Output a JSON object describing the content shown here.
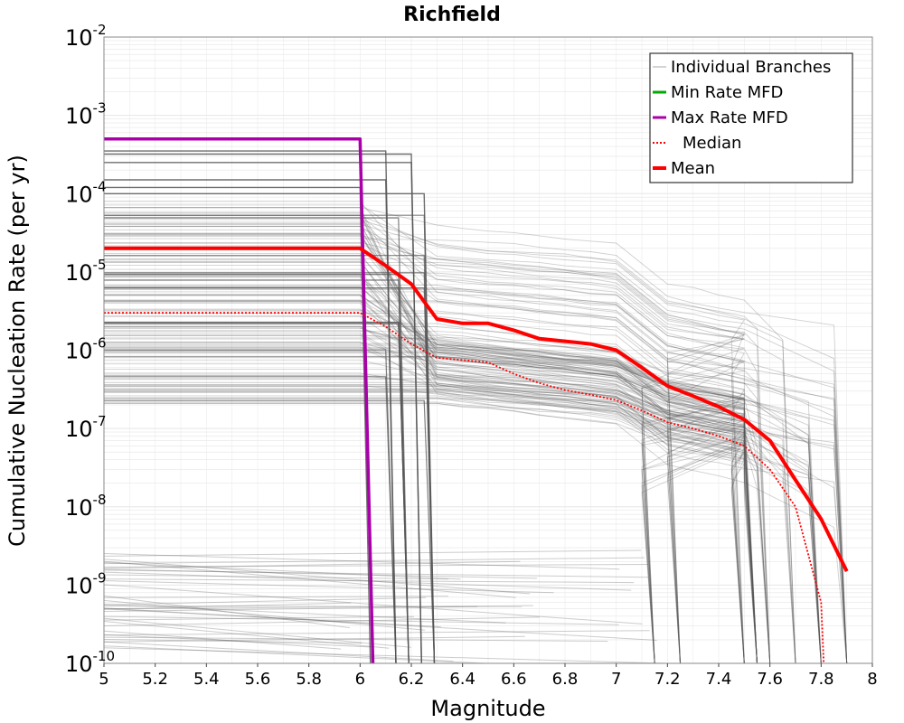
{
  "chart_data": {
    "type": "line",
    "title": "Richfield",
    "xlabel": "Magnitude",
    "ylabel": "Cumulative Nucleation Rate (per yr)",
    "xlim": [
      5,
      8
    ],
    "ylim": [
      1e-10,
      0.01
    ],
    "yscale": "log",
    "grid": true,
    "legend_position": "top-right",
    "x_ticks": [
      "5",
      "5.2",
      "5.4",
      "5.6",
      "5.8",
      "6",
      "6.2",
      "6.4",
      "6.6",
      "6.8",
      "7",
      "7.2",
      "7.4",
      "7.6",
      "7.8",
      "8"
    ],
    "y_ticks": [
      {
        "base": "10",
        "exp": "-2",
        "value": 0.01
      },
      {
        "base": "10",
        "exp": "-3",
        "value": 0.001
      },
      {
        "base": "10",
        "exp": "-4",
        "value": 0.0001
      },
      {
        "base": "10",
        "exp": "-5",
        "value": 1e-05
      },
      {
        "base": "10",
        "exp": "-6",
        "value": 1e-06
      },
      {
        "base": "10",
        "exp": "-7",
        "value": 1e-07
      },
      {
        "base": "10",
        "exp": "-8",
        "value": 1e-08
      },
      {
        "base": "10",
        "exp": "-9",
        "value": 1e-09
      },
      {
        "base": "10",
        "exp": "-10",
        "value": 1e-10
      }
    ],
    "series": [
      {
        "name": "Min Rate MFD",
        "color": "#00aa00",
        "style": "solid",
        "x": [],
        "y": []
      },
      {
        "name": "Max Rate MFD",
        "color": "#aa00aa",
        "style": "solid",
        "x": [
          5.0,
          6.0,
          6.05
        ],
        "y": [
          0.0005,
          0.0005,
          1e-10
        ]
      },
      {
        "name": "Median",
        "color": "#ff0000",
        "style": "dotted",
        "x": [
          5.0,
          6.0,
          6.1,
          6.2,
          6.3,
          6.5,
          6.6,
          6.7,
          6.8,
          6.9,
          7.0,
          7.1,
          7.2,
          7.3,
          7.4,
          7.5,
          7.6,
          7.7,
          7.8,
          7.81
        ],
        "y": [
          3e-06,
          3e-06,
          2e-06,
          1.2e-06,
          8e-07,
          7e-07,
          5e-07,
          3.8e-07,
          3.1e-07,
          2.7e-07,
          2.3e-07,
          1.7e-07,
          1.2e-07,
          1e-07,
          8e-08,
          6e-08,
          3e-08,
          1e-08,
          6e-10,
          1e-10
        ]
      },
      {
        "name": "Mean",
        "color": "#ff0000",
        "style": "solid",
        "x": [
          5.0,
          6.0,
          6.1,
          6.2,
          6.3,
          6.4,
          6.5,
          6.6,
          6.7,
          6.8,
          6.9,
          7.0,
          7.1,
          7.2,
          7.3,
          7.4,
          7.5,
          7.6,
          7.7,
          7.8,
          7.9
        ],
        "y": [
          2e-05,
          2e-05,
          1.2e-05,
          7e-06,
          2.5e-06,
          2.2e-06,
          2.2e-06,
          1.8e-06,
          1.4e-06,
          1.3e-06,
          1.2e-06,
          1e-06,
          6e-07,
          3.5e-07,
          2.6e-07,
          1.9e-07,
          1.3e-07,
          7e-08,
          2.2e-08,
          7e-09,
          1.5e-09
        ]
      }
    ],
    "individual_branches": {
      "name": "Individual Branches",
      "color": "#555555",
      "dense_start_level_bands": [
        {
          "min": 2e-07,
          "max": 8e-05,
          "count": 140
        },
        {
          "min": 1.5e-10,
          "max": 3e-09,
          "count": 40
        }
      ],
      "high_start_levels": [
        0.00035,
        0.00032,
        0.00025,
        0.00015,
        0.00012,
        0.0001
      ],
      "drop_magnitudes": [
        6.1,
        6.15,
        6.25,
        7.05,
        7.15,
        7.25,
        7.5,
        7.55,
        7.6,
        7.7,
        7.8,
        7.9
      ]
    }
  },
  "legend": {
    "items": [
      {
        "label": "Individual Branches",
        "color": "#aaaaaa",
        "style": "thin"
      },
      {
        "label": "Min Rate MFD",
        "color": "#00aa00",
        "style": "solid"
      },
      {
        "label": "Max Rate MFD",
        "color": "#aa00aa",
        "style": "solid"
      },
      {
        "label": "Median",
        "color": "#ff0000",
        "style": "dotted"
      },
      {
        "label": "Mean",
        "color": "#ff0000",
        "style": "thick"
      }
    ]
  }
}
